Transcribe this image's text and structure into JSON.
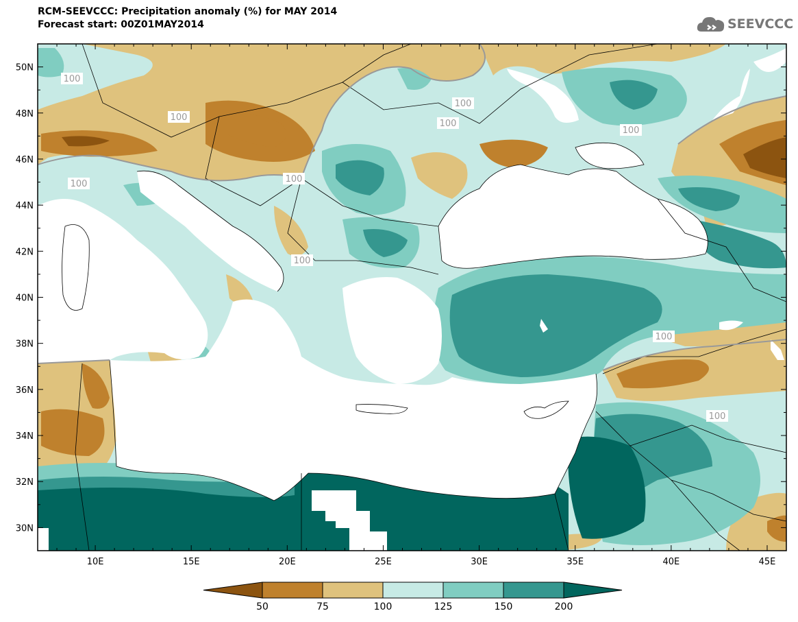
{
  "title": {
    "line1": "RCM-SEEVCCC: Precipitation anomaly (%) for MAY 2014",
    "line2": "Forecast start: 00Z01MAY2014"
  },
  "logo": {
    "text": "SEEVCCC",
    "icon": "cloud-logo-icon"
  },
  "map": {
    "lon_range": [
      7,
      46
    ],
    "lat_range": [
      29,
      51
    ],
    "lat_ticks": [
      "50N",
      "48N",
      "46N",
      "44N",
      "42N",
      "40N",
      "38N",
      "36N",
      "34N",
      "32N",
      "30N"
    ],
    "lon_ticks": [
      "10E",
      "15E",
      "20E",
      "25E",
      "30E",
      "35E",
      "40E",
      "45E"
    ],
    "contour_labels": [
      "100",
      "100",
      "100",
      "100",
      "100",
      "100",
      "100",
      "100",
      "100",
      "100"
    ]
  },
  "colorbar": {
    "boundaries": [
      "50",
      "75",
      "100",
      "125",
      "150",
      "200"
    ],
    "colors": {
      "below_50": "#8c5410",
      "b50_75": "#bf812d",
      "b75_100": "#dfc27d",
      "b100_125": "#c7eae5",
      "b125_150": "#80cdc1",
      "b150_200": "#35978f",
      "above_200": "#01665e"
    }
  }
}
